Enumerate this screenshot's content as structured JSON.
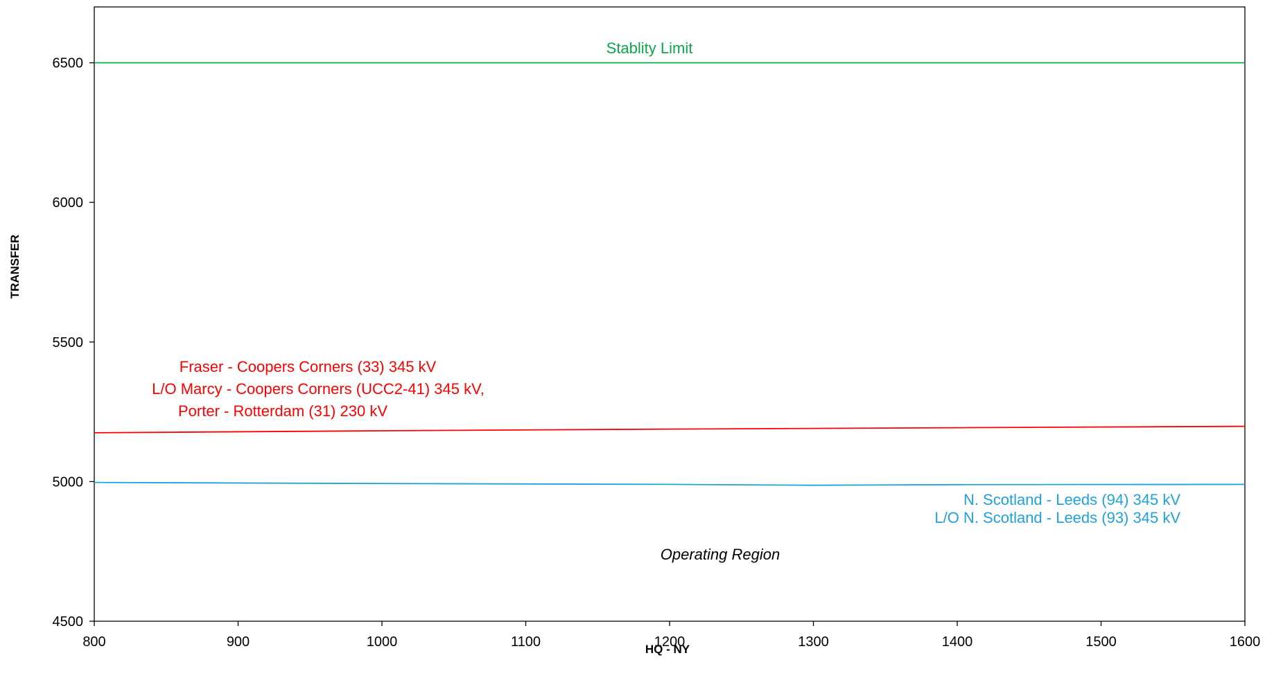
{
  "chart_data": {
    "type": "line",
    "title": "",
    "xlabel": "HQ - NY",
    "ylabel": "TRANSFER",
    "xlim": [
      800,
      1600
    ],
    "ylim": [
      4500,
      6700
    ],
    "xticks": [
      800,
      900,
      1000,
      1100,
      1200,
      1300,
      1400,
      1500,
      1600
    ],
    "yticks": [
      4500,
      5000,
      5500,
      6000,
      6500
    ],
    "grid": false,
    "legend": "none",
    "series": [
      {
        "color": "#0aa84a",
        "x": [
          800,
          1600
        ],
        "y": [
          6500,
          6500
        ]
      },
      {
        "color": "#ff0000",
        "x": [
          800,
          1000,
          1200,
          1400,
          1600
        ],
        "y": [
          5175,
          5182,
          5188,
          5193,
          5198
        ]
      },
      {
        "color": "#1fa2db",
        "x": [
          800,
          1000,
          1200,
          1300,
          1400,
          1600
        ],
        "y": [
          4997,
          4993,
          4990,
          4987,
          4989,
          4990
        ]
      }
    ],
    "annotations": {
      "stability": "Stablity Limit",
      "red_line1": "Fraser - Coopers Corners (33) 345  kV",
      "red_line2": "L/O Marcy - Coopers Corners (UCC2-41) 345 kV,",
      "red_line3": "Porter - Rotterdam (31) 230 kV",
      "blue_line1": "N. Scotland - Leeds (94)  345  kV",
      "blue_line2": "L/O  N. Scotland - Leeds (93) 345  kV",
      "region": "Operating  Region"
    }
  }
}
